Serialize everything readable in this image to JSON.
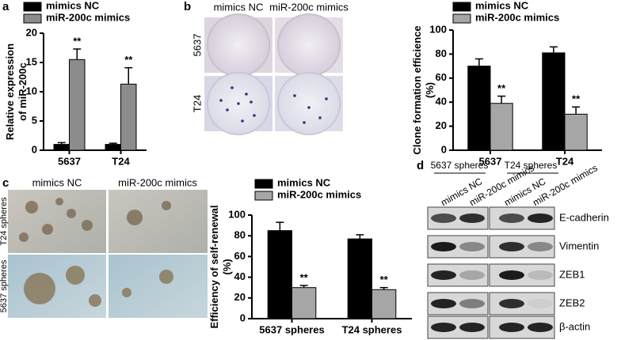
{
  "panel_labels": [
    "a",
    "b",
    "c",
    "d"
  ],
  "chart_data": [
    {
      "type": "bar",
      "ylabel": [
        "Relative expression",
        "of miR-200c"
      ],
      "categories": [
        "5637",
        "T24"
      ],
      "series": [
        {
          "name": "mimics NC",
          "color": "#000000",
          "values": [
            1,
            1
          ],
          "errors": [
            0.3,
            0.2
          ]
        },
        {
          "name": "miR-200c mimics",
          "color": "#8c8c8c",
          "values": [
            15.5,
            11.3
          ],
          "errors": [
            1.8,
            2.8
          ]
        }
      ],
      "annotations": [
        "**",
        "**"
      ],
      "ylim": [
        0,
        20
      ],
      "yticks": [
        0,
        5,
        10,
        15,
        20
      ]
    },
    {
      "type": "bar",
      "ylabel": [
        "Clone formation efficience",
        "(%)"
      ],
      "categories": [
        "5637",
        "T24"
      ],
      "series": [
        {
          "name": "mimics NC",
          "color": "#000000",
          "values": [
            70,
            81
          ],
          "errors": [
            6,
            5
          ]
        },
        {
          "name": "miR-200c mimics",
          "color": "#a6a6a6",
          "values": [
            39,
            30
          ],
          "errors": [
            6,
            6
          ]
        }
      ],
      "annotations": [
        "**",
        "**"
      ],
      "ylim": [
        0,
        100
      ],
      "yticks": [
        0,
        20,
        40,
        60,
        80,
        100
      ]
    },
    {
      "type": "bar",
      "ylabel": [
        "Efficiency of self-renewal",
        "(%)"
      ],
      "categories": [
        "5637 spheres",
        "T24 spheres"
      ],
      "series": [
        {
          "name": "mimics NC",
          "color": "#000000",
          "values": [
            85,
            77
          ],
          "errors": [
            8,
            4
          ]
        },
        {
          "name": "miR-200c mimics",
          "color": "#a6a6a6",
          "values": [
            30,
            28
          ],
          "errors": [
            2,
            2
          ]
        }
      ],
      "annotations": [
        "**",
        "**"
      ],
      "ylim": [
        0,
        100
      ],
      "yticks": [
        0,
        20,
        40,
        60,
        80,
        100
      ]
    }
  ],
  "colony_images": {
    "columns": [
      "mimics NC",
      "miR-200c mimics"
    ],
    "rows": [
      "5637",
      "T24"
    ]
  },
  "sphere_images": {
    "columns": [
      "mimics NC",
      "miR-200c mimics"
    ],
    "rows": [
      "T24 spheres",
      "5637 spheres"
    ]
  },
  "western_blot": {
    "groups": [
      "5637 spheres",
      "T24 spheres"
    ],
    "lanes": [
      "mimics NC",
      "miR-200c mimics",
      "mimics NC",
      "miR-200c mimics"
    ],
    "proteins": [
      "E-cadherin",
      "Vimentin",
      "ZEB1",
      "ZEB2",
      "β-actin"
    ]
  }
}
